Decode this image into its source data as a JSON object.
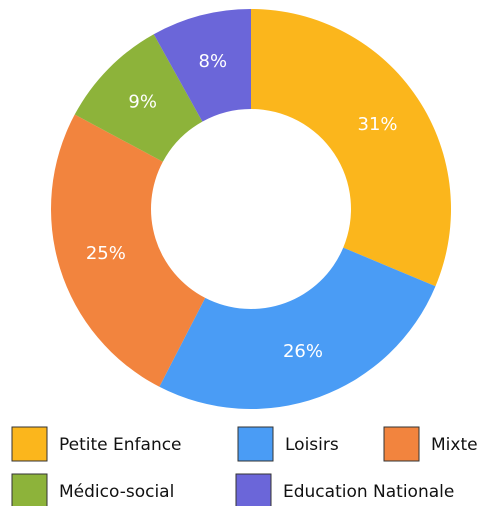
{
  "chart_data": {
    "type": "donut",
    "categories": [
      "Petite Enfance",
      "Loisirs",
      "Mixte",
      "Médico-social",
      "Education Nationale"
    ],
    "values": [
      31,
      26,
      25,
      9,
      8
    ],
    "value_labels": [
      "31%",
      "26%",
      "25%",
      "9%",
      "8%"
    ],
    "colors": [
      "#fbb61c",
      "#4a9cf5",
      "#f2843e",
      "#8db33a",
      "#6b66d9"
    ],
    "legend": "bottom"
  }
}
